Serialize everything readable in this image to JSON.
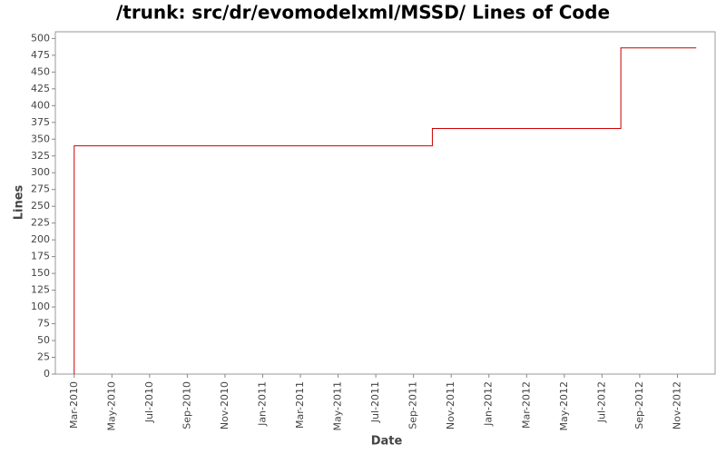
{
  "chart_data": {
    "type": "line",
    "title": "/trunk: src/dr/evomodelxml/MSSD/ Lines of Code",
    "x_label": "Date",
    "y_label": "Lines",
    "step": "after",
    "x": [
      "2010-03",
      "2010-03",
      "2011-10",
      "2012-08",
      "2012-12"
    ],
    "series": [
      {
        "name": "Lines",
        "color": "#cc0000",
        "values": [
          0,
          340,
          366,
          486,
          486
        ]
      }
    ],
    "xlim": [
      "2010-02",
      "2013-01"
    ],
    "xticks": [
      {
        "value": "2010-03",
        "label": "Mar-2010"
      },
      {
        "value": "2010-05",
        "label": "May-2010"
      },
      {
        "value": "2010-07",
        "label": "Jul-2010"
      },
      {
        "value": "2010-09",
        "label": "Sep-2010"
      },
      {
        "value": "2010-11",
        "label": "Nov-2010"
      },
      {
        "value": "2011-01",
        "label": "Jan-2011"
      },
      {
        "value": "2011-03",
        "label": "Mar-2011"
      },
      {
        "value": "2011-05",
        "label": "May-2011"
      },
      {
        "value": "2011-07",
        "label": "Jul-2011"
      },
      {
        "value": "2011-09",
        "label": "Sep-2011"
      },
      {
        "value": "2011-11",
        "label": "Nov-2011"
      },
      {
        "value": "2012-01",
        "label": "Jan-2012"
      },
      {
        "value": "2012-03",
        "label": "Mar-2012"
      },
      {
        "value": "2012-05",
        "label": "May-2012"
      },
      {
        "value": "2012-07",
        "label": "Jul-2012"
      },
      {
        "value": "2012-09",
        "label": "Sep-2012"
      },
      {
        "value": "2012-11",
        "label": "Nov-2012"
      }
    ],
    "ylim": [
      0,
      510
    ],
    "yticks": [
      0,
      25,
      50,
      75,
      100,
      125,
      150,
      175,
      200,
      225,
      250,
      275,
      300,
      325,
      350,
      375,
      400,
      425,
      450,
      475,
      500
    ]
  }
}
